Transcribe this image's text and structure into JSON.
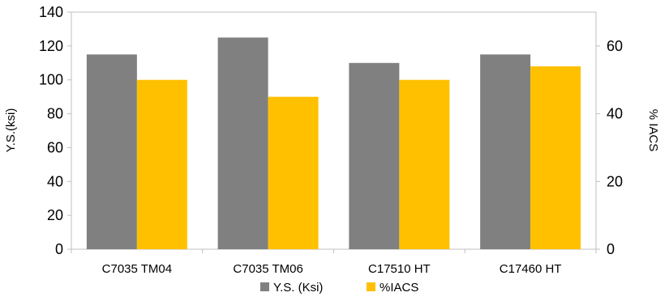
{
  "chart_data": {
    "type": "bar",
    "categories": [
      "C7035 TM04",
      "C7035 TM06",
      "C17510 HT",
      "C17460 HT"
    ],
    "series": [
      {
        "name": "Y.S. (Ksi)",
        "axis": "left",
        "color": "#808080",
        "values": [
          115,
          125,
          110,
          115
        ]
      },
      {
        "name": "%IACS",
        "axis": "right",
        "color": "#FFC000",
        "values": [
          50,
          45,
          50,
          54
        ]
      }
    ],
    "ylabel": "Y.S.(ksi)",
    "ylabel_right": "% IACS",
    "ylim": [
      0,
      140
    ],
    "ylim_right": [
      0,
      70
    ],
    "yticks": [
      0,
      20,
      40,
      60,
      80,
      100,
      120,
      140
    ],
    "yticks_right": [
      0,
      20,
      40,
      60
    ],
    "grid": false,
    "legend": "bottom"
  }
}
